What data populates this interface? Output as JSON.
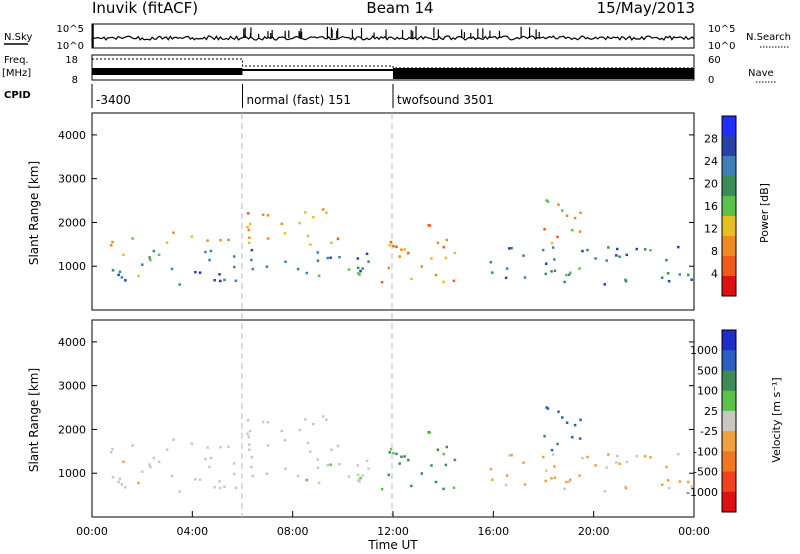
{
  "header": {
    "station": "Inuvik (fitACF)",
    "beam": "Beam 14",
    "date": "15/May/2013"
  },
  "left_labels": {
    "nsky": "N.Sky",
    "freq": "Freq.",
    "freq_unit": "[MHz]",
    "cpid": "CPID"
  },
  "right_labels": {
    "nsearch": "N.Search",
    "nave": "Nave"
  },
  "nsky_ticks": [
    "10^5",
    "10^0"
  ],
  "freq_ticks": [
    "18",
    "8"
  ],
  "nave_ticks": [
    "60",
    "0"
  ],
  "cpid_segments": [
    {
      "label": "-3400",
      "start": 0,
      "end": 6
    },
    {
      "label": "normal (fast) 151",
      "start": 6,
      "end": 12
    },
    {
      "label": "twofsound 3501",
      "start": 12,
      "end": 24
    }
  ],
  "x_ticks": [
    "00:00",
    "04:00",
    "08:00",
    "12:00",
    "16:00",
    "20:00",
    "00:00"
  ],
  "x_axis_label": "Time UT",
  "y_ticks": [
    "1000",
    "2000",
    "3000",
    "4000"
  ],
  "y_axis_label": "Slant Range [km]",
  "power_colorbar": {
    "label": "Power [dB]",
    "ticks": [
      "28",
      "24",
      "20",
      "16",
      "12",
      "8",
      "4"
    ],
    "colors": [
      "#1f2dff",
      "#2a40a8",
      "#3e7fb8",
      "#3c8c5a",
      "#5cc04c",
      "#e6c020",
      "#f08a20",
      "#f05a18",
      "#e01010"
    ]
  },
  "velocity_colorbar": {
    "label": "Velocity [m s⁻¹]",
    "ticks": [
      "1000",
      "500",
      "100",
      "25",
      "-25",
      "-100",
      "-500",
      "-1000"
    ],
    "colors": [
      "#1f2dc8",
      "#2a5fc0",
      "#3c8c5a",
      "#5cc04c",
      "#c8c8c0",
      "#f0a040",
      "#f07820",
      "#f04020",
      "#e01010"
    ]
  },
  "chart_data": {
    "type": "heatmap",
    "x_range": [
      "00:00",
      "24:00"
    ],
    "y_range_km": [
      0,
      4500
    ],
    "power_range_db": [
      0,
      32
    ],
    "velocity_range_ms": [
      -1000,
      1000
    ],
    "scatter_blobs": [
      {
        "t0": 0.5,
        "t1": 3.0,
        "r0": 700,
        "r1": 1400,
        "power": 18,
        "velocity": -50
      },
      {
        "t0": 1.0,
        "t1": 6.0,
        "r0": 600,
        "r1": 1000,
        "power": 26,
        "velocity": 20
      },
      {
        "t0": 0.5,
        "t1": 3.5,
        "r0": 1500,
        "r1": 1800,
        "power": 12,
        "velocity": 5
      },
      {
        "t0": 3.5,
        "t1": 6.0,
        "r0": 1500,
        "r1": 1800,
        "power": 12,
        "velocity": 5
      },
      {
        "t0": 4.0,
        "t1": 11.0,
        "r0": 900,
        "r1": 1400,
        "power": 24,
        "velocity": 60
      },
      {
        "t0": 6.0,
        "t1": 10.0,
        "r0": 1500,
        "r1": 2400,
        "power": 10,
        "velocity": 10
      },
      {
        "t0": 8.5,
        "t1": 11.5,
        "r0": 800,
        "r1": 1300,
        "power": 20,
        "velocity": 80
      },
      {
        "t0": 11.5,
        "t1": 14.5,
        "r0": 600,
        "r1": 2000,
        "power": 9,
        "velocity": 400
      },
      {
        "t0": 15.5,
        "t1": 24.0,
        "r0": 600,
        "r1": 1500,
        "power": 22,
        "velocity": -150
      },
      {
        "t0": 17.5,
        "t1": 19.5,
        "r0": 1500,
        "r1": 2600,
        "power": 10,
        "velocity": 600
      }
    ]
  }
}
